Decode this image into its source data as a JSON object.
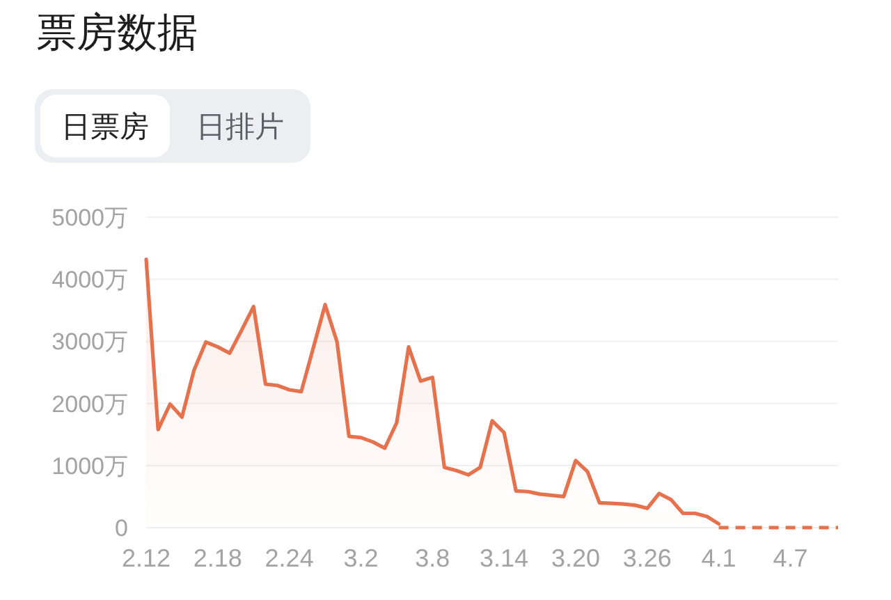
{
  "chart_data": {
    "type": "area",
    "title": "票房数据",
    "annotations": [
      "日票房",
      "日排片"
    ],
    "xlim": [
      "--02-12",
      "--04-11"
    ],
    "xticks": [
      {
        "value": "--02-12",
        "label": "2.12"
      },
      {
        "value": "--02-18",
        "label": "2.18"
      },
      {
        "value": "--02-24",
        "label": "2.24"
      },
      {
        "value": "--03-02",
        "label": "3.2"
      },
      {
        "value": "--03-08",
        "label": "3.8"
      },
      {
        "value": "--03-14",
        "label": "3.14"
      },
      {
        "value": "--03-20",
        "label": "3.20"
      },
      {
        "value": "--03-26",
        "label": "3.26"
      },
      {
        "value": "--04-01",
        "label": "4.1"
      },
      {
        "value": "--04-07",
        "label": "4.7"
      }
    ],
    "ylim": [
      0,
      5000
    ],
    "yticks": [
      0,
      {
        "value": 1000,
        "label": "1000万"
      },
      {
        "value": 2000,
        "label": "2000万"
      },
      {
        "value": 3000,
        "label": "3000万"
      },
      {
        "value": 4000,
        "label": "4000万"
      },
      {
        "value": 5000,
        "label": "5000万"
      }
    ],
    "grid": "y",
    "series": [
      {
        "color": "#e5714d",
        "x": [
          "--02-12",
          "--02-13",
          "--02-14",
          "--02-15",
          "--02-16",
          "--02-17",
          "--02-18",
          "--02-19",
          "--02-20",
          "--02-21",
          "--02-22",
          "--02-23",
          "--02-24",
          "--02-25",
          "--02-26",
          "--02-27",
          "--02-28",
          "--03-01",
          "--03-02",
          "--03-03",
          "--03-04",
          "--03-05",
          "--03-06",
          "--03-07",
          "--03-08",
          "--03-09",
          "--03-10",
          "--03-11",
          "--03-12",
          "--03-13",
          "--03-14",
          "--03-15",
          "--03-16",
          "--03-17",
          "--03-18",
          "--03-19",
          "--03-20",
          "--03-21",
          "--03-22",
          "--03-23",
          "--03-24",
          "--03-25",
          "--03-26",
          "--03-27",
          "--03-28",
          "--03-29",
          "--03-30",
          "--03-31",
          "--04-01"
        ],
        "values": [
          4320,
          1580,
          1990,
          1780,
          2530,
          2990,
          2910,
          2810,
          3180,
          3560,
          2310,
          2290,
          2220,
          2190,
          2890,
          3590,
          2990,
          1470,
          1450,
          1380,
          1280,
          1690,
          2910,
          2360,
          2420,
          970,
          920,
          850,
          970,
          1720,
          1530,
          590,
          580,
          540,
          520,
          500,
          1080,
          900,
          400,
          390,
          380,
          360,
          310,
          550,
          450,
          230,
          230,
          180,
          60
        ]
      },
      {
        "type": "line",
        "line_style": "dashed",
        "color": "#e5714d",
        "x": [
          "--04-01",
          "--04-02",
          "--04-03",
          "--04-04",
          "--04-05",
          "--04-06",
          "--04-07",
          "--04-08",
          "--04-09",
          "--04-10",
          "--04-11"
        ],
        "values": [
          0,
          0,
          0,
          0,
          0,
          0,
          0,
          0,
          0,
          0,
          0
        ]
      }
    ]
  }
}
